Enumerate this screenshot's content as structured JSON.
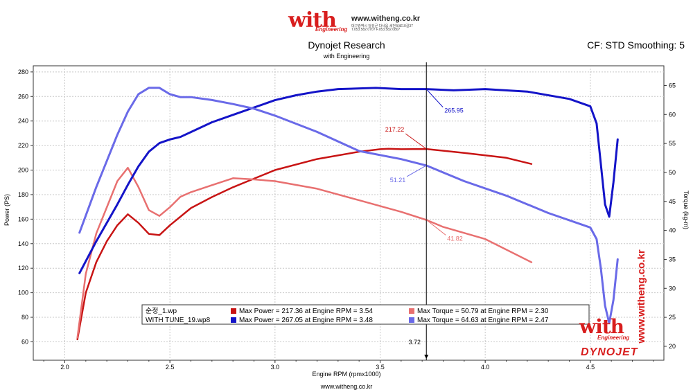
{
  "header": {
    "logo_text": "with",
    "logo_sub": "Engineering",
    "url": "www.witheng.co.kr",
    "info_line1": "대구광역시 달성군 다사읍 세천북로10길37",
    "info_line2": "T.053.582.0707 F.053.582.0807"
  },
  "chart_title": "Dynojet Research",
  "chart_subtitle": "with Engineering",
  "cf_text": "CF: STD Smoothing: 5",
  "footer_url": "www.witheng.co.kr",
  "watermark": {
    "vertical_text": "www.witheng.co.kr",
    "with_text": "with",
    "with_sub": "Engineering",
    "dynojet_text": "DYNOJET"
  },
  "legend": {
    "rows": [
      {
        "file": "순정_1.wp",
        "power": "Max Power = 217.36 at Engine RPM = 3.54",
        "torque": "Max Torque = 50.79 at Engine RPM = 2.30",
        "power_color": "#c81414",
        "torque_color": "#e87070"
      },
      {
        "file": "WITH TUNE_19.wp8",
        "power": "Max Power = 267.05 at Engine RPM = 3.48",
        "torque": "Max Torque = 64.63 at Engine RPM = 2.47",
        "power_color": "#1414c8",
        "torque_color": "#6a6ae8"
      }
    ]
  },
  "chart_data": {
    "type": "line",
    "xlabel": "Engine RPM (rpmx1000)",
    "ylabel": "Power (PS)",
    "y2label": "Torque (kg-m)",
    "xlim": [
      1.85,
      4.85
    ],
    "ylim": [
      45,
      285
    ],
    "y2lim": [
      17.6,
      68.4
    ],
    "x_ticks": [
      2.0,
      2.5,
      3.0,
      3.5,
      4.0,
      4.5
    ],
    "x_tick_labels": [
      "2.0",
      "2.5",
      "3.0",
      "3.5",
      "4.0",
      "4.5"
    ],
    "y_ticks": [
      60,
      80,
      100,
      120,
      140,
      160,
      180,
      200,
      220,
      240,
      260,
      280
    ],
    "y2_ticks": [
      20,
      25,
      30,
      35,
      40,
      45,
      50,
      55,
      60,
      65
    ],
    "grid": true,
    "cursor": {
      "x": 3.72,
      "label": "3.72"
    },
    "annotations": [
      {
        "text": "265.95",
        "series": 2,
        "x": 3.72,
        "y": 265.95,
        "color": "#1414c8"
      },
      {
        "text": "217.22",
        "series": 0,
        "x": 3.72,
        "y": 217.22,
        "color": "#c81414"
      },
      {
        "text": "51.21",
        "series": 3,
        "x": 3.72,
        "y": 51.21,
        "color": "#6a6ae8"
      },
      {
        "text": "41.82",
        "series": 1,
        "x": 3.72,
        "y": 41.82,
        "color": "#e87070"
      }
    ],
    "series": [
      {
        "axis": "left",
        "color": "#c81414",
        "x": [
          2.06,
          2.1,
          2.15,
          2.2,
          2.25,
          2.3,
          2.35,
          2.4,
          2.45,
          2.5,
          2.6,
          2.7,
          2.8,
          2.9,
          3.0,
          3.2,
          3.4,
          3.5,
          3.54,
          3.6,
          3.72,
          3.9,
          4.1,
          4.22
        ],
        "y": [
          62,
          100,
          125,
          142,
          155,
          164,
          157,
          148,
          147,
          155,
          169,
          178,
          186,
          193,
          200,
          209,
          215,
          217,
          217.4,
          217,
          217.2,
          214,
          210,
          205
        ]
      },
      {
        "axis": "right",
        "color": "#e87070",
        "x": [
          2.06,
          2.1,
          2.15,
          2.2,
          2.25,
          2.3,
          2.35,
          2.4,
          2.45,
          2.5,
          2.55,
          2.6,
          2.7,
          2.8,
          2.9,
          3.0,
          3.2,
          3.4,
          3.6,
          3.72,
          3.8,
          4.0,
          4.22
        ],
        "y": [
          21.5,
          32.5,
          39.5,
          44,
          48.5,
          50.8,
          47.5,
          43.5,
          42.5,
          44,
          45.8,
          46.6,
          47.8,
          49,
          48.8,
          48.5,
          47.2,
          45.2,
          43.2,
          41.8,
          40.6,
          38.5,
          34.5
        ]
      },
      {
        "axis": "left",
        "color": "#1414c8",
        "x": [
          2.07,
          2.15,
          2.25,
          2.3,
          2.35,
          2.4,
          2.45,
          2.5,
          2.55,
          2.6,
          2.7,
          2.8,
          2.9,
          3.0,
          3.1,
          3.2,
          3.3,
          3.48,
          3.6,
          3.72,
          3.85,
          4.0,
          4.2,
          4.4,
          4.5,
          4.53,
          4.55,
          4.57,
          4.59,
          4.61,
          4.63
        ],
        "y": [
          116,
          142,
          172,
          188,
          203,
          215,
          222,
          225,
          227,
          231,
          239,
          245,
          251,
          257,
          261,
          264,
          266,
          267,
          266,
          266,
          265,
          266,
          264,
          258,
          252,
          238,
          205,
          172,
          162,
          190,
          225
        ]
      },
      {
        "axis": "right",
        "color": "#6a6ae8",
        "x": [
          2.07,
          2.15,
          2.2,
          2.25,
          2.3,
          2.35,
          2.4,
          2.45,
          2.5,
          2.55,
          2.6,
          2.7,
          2.8,
          2.9,
          3.0,
          3.2,
          3.4,
          3.6,
          3.72,
          3.9,
          4.1,
          4.3,
          4.5,
          4.53,
          4.55,
          4.57,
          4.59,
          4.61,
          4.63
        ],
        "y": [
          39.6,
          47.5,
          52,
          56.5,
          60.5,
          63.5,
          64.6,
          64.6,
          63.5,
          63,
          63,
          62.5,
          61.8,
          61,
          59.8,
          57,
          53.7,
          52.3,
          51.2,
          48.5,
          46,
          43,
          40.5,
          38.5,
          33.5,
          27,
          24,
          28,
          35
        ]
      }
    ]
  }
}
